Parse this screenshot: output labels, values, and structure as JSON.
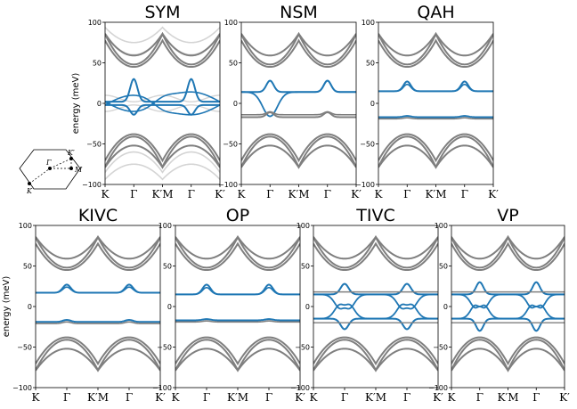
{
  "figure": {
    "ylabel": "energy (meV)",
    "yticks": [
      "100",
      "50",
      "0",
      "−50",
      "−100"
    ],
    "xticks": [
      "K",
      "Γ",
      "K′M",
      "Γ",
      "K′"
    ],
    "inset": {
      "labels": {
        "gamma": "Γ",
        "k": "K",
        "kprime": "K′",
        "m": "M"
      }
    }
  },
  "chart_data": [
    {
      "type": "line",
      "title": "SYM",
      "ylim": [
        -100,
        100
      ],
      "ylabel": "energy (meV)",
      "shade_light": true,
      "flat": {
        "up": 2,
        "down": -2,
        "peak": 30,
        "dip": -14,
        "kind": "sym"
      }
    },
    {
      "type": "line",
      "title": "NSM",
      "ylim": [
        -100,
        100
      ],
      "ylabel": "",
      "flat": {
        "up": 14,
        "down": -17,
        "peak": 28,
        "dip": -11,
        "kind": "nsm"
      }
    },
    {
      "type": "line",
      "title": "QAH",
      "ylim": [
        -100,
        100
      ],
      "ylabel": "",
      "flat": {
        "up": 15,
        "down": -17,
        "peak": 27,
        "dip": -14,
        "kind": "gap"
      }
    },
    {
      "type": "line",
      "title": "KIVC",
      "ylim": [
        -100,
        100
      ],
      "ylabel": "energy (meV)",
      "flat": {
        "up": 17,
        "down": -19,
        "peak": 27,
        "dip": -14,
        "kind": "gap"
      }
    },
    {
      "type": "line",
      "title": "OP",
      "ylim": [
        -100,
        100
      ],
      "ylabel": "",
      "flat": {
        "up": 15,
        "down": -17,
        "peak": 27,
        "dip": -14,
        "kind": "gap"
      }
    },
    {
      "type": "line",
      "title": "TIVC",
      "ylim": [
        -100,
        100
      ],
      "ylabel": "",
      "flat": {
        "up": 15,
        "down": -15,
        "peak": 28,
        "dip": -28,
        "kind": "cross"
      }
    },
    {
      "type": "line",
      "title": "VP",
      "ylim": [
        -100,
        100
      ],
      "ylabel": "",
      "flat": {
        "up": 15,
        "down": -15,
        "peak": 30,
        "dip": -30,
        "kind": "cross"
      }
    }
  ]
}
